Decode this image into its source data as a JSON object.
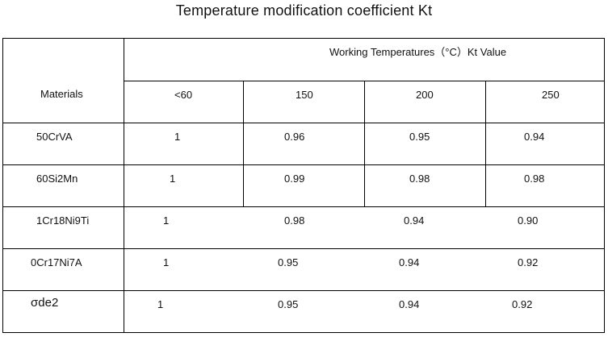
{
  "title": "Temperature modification coefficient Kt",
  "table": {
    "row_header": "Materials",
    "group_header": "Working Temperatures（°C）Kt    Value",
    "columns": [
      "<60",
      "150",
      "200",
      "250"
    ],
    "rows": [
      {
        "material": "50CrVA",
        "values": [
          "1",
          "0.96",
          "0.95",
          "0.94"
        ]
      },
      {
        "material": "60Si2Mn",
        "values": [
          "1",
          "0.99",
          "0.98",
          "0.98"
        ]
      },
      {
        "material": "1Cr18Ni9Ti",
        "values": [
          "1",
          "0.98",
          "0.94",
          "0.90"
        ]
      },
      {
        "material": "0Cr17Ni7A",
        "values": [
          "1",
          "0.95",
          "0.94",
          "0.92"
        ]
      },
      {
        "material": "σde2",
        "values": [
          "1",
          "0.95",
          "0.94",
          "0.92"
        ]
      }
    ]
  }
}
